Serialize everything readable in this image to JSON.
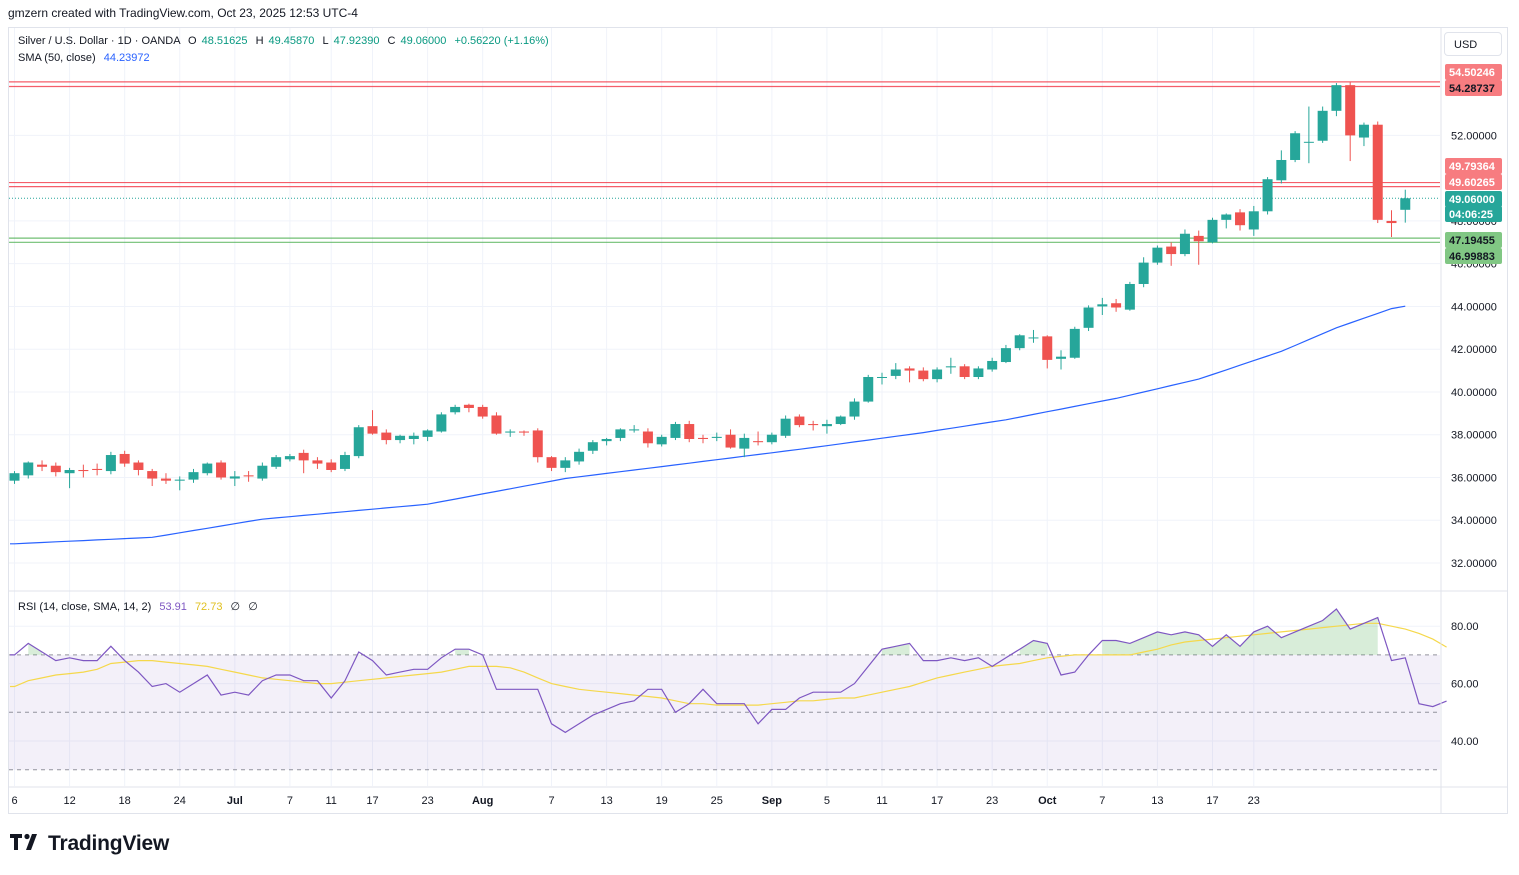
{
  "header": {
    "credit": "gmzern created with TradingView.com, Oct 23, 2025 12:53 UTC-4"
  },
  "legend": {
    "symbol": "Silver / U.S. Dollar · 1D · OANDA",
    "open_label": "O",
    "open": "48.51625",
    "high_label": "H",
    "high": "49.45870",
    "low_label": "L",
    "low": "47.92390",
    "close_label": "C",
    "close": "49.06000",
    "change": "+0.56220 (+1.16%)",
    "sma_label": "SMA (50, close)",
    "sma_value": "44.23972",
    "rsi_label": "RSI (14, close, SMA, 14, 2)",
    "rsi_value": "53.91",
    "rsi_sma_value": "72.73",
    "rsi_extra1": "∅",
    "rsi_extra2": "∅"
  },
  "currency_button": "USD",
  "brand": "TradingView",
  "colors": {
    "up": "#26a69a",
    "down": "#ef5350",
    "sma": "#2962ff",
    "rsi": "#7e57c2",
    "rsi_sma": "#f5d84b",
    "resistance": "#f23645",
    "support": "#4caf50"
  },
  "chart_data": [
    {
      "type": "candlestick",
      "title": "Silver / U.S. Dollar · 1D · OANDA",
      "x_tick_labels": [
        "6",
        "12",
        "18",
        "24",
        "Jul",
        "7",
        "11",
        "17",
        "23",
        "Aug",
        "7",
        "13",
        "19",
        "25",
        "Sep",
        "5",
        "11",
        "17",
        "23",
        "Oct",
        "7",
        "13",
        "17",
        "23"
      ],
      "y_tick_labels": [
        "32.00000",
        "34.00000",
        "36.00000",
        "38.00000",
        "40.00000",
        "42.00000",
        "44.00000",
        "46.00000",
        "48.00000",
        "52.00000"
      ],
      "ylim": [
        31,
        55.3
      ],
      "candles": [
        {
          "o": 35.85,
          "h": 36.3,
          "l": 35.7,
          "c": 36.2
        },
        {
          "o": 36.1,
          "h": 36.75,
          "l": 35.95,
          "c": 36.7
        },
        {
          "o": 36.6,
          "h": 36.8,
          "l": 36.3,
          "c": 36.5
        },
        {
          "o": 36.55,
          "h": 36.7,
          "l": 36.05,
          "c": 36.25
        },
        {
          "o": 36.2,
          "h": 36.45,
          "l": 35.5,
          "c": 36.35
        },
        {
          "o": 36.35,
          "h": 36.6,
          "l": 36.0,
          "c": 36.3
        },
        {
          "o": 36.4,
          "h": 36.65,
          "l": 36.1,
          "c": 36.35
        },
        {
          "o": 36.3,
          "h": 37.2,
          "l": 36.15,
          "c": 37.05
        },
        {
          "o": 37.1,
          "h": 37.25,
          "l": 36.5,
          "c": 36.65
        },
        {
          "o": 36.7,
          "h": 36.8,
          "l": 36.1,
          "c": 36.35
        },
        {
          "o": 36.3,
          "h": 36.4,
          "l": 35.6,
          "c": 35.95
        },
        {
          "o": 35.95,
          "h": 36.2,
          "l": 35.7,
          "c": 35.85
        },
        {
          "o": 35.85,
          "h": 36.05,
          "l": 35.4,
          "c": 35.9
        },
        {
          "o": 35.9,
          "h": 36.4,
          "l": 35.75,
          "c": 36.25
        },
        {
          "o": 36.2,
          "h": 36.7,
          "l": 36.1,
          "c": 36.65
        },
        {
          "o": 36.7,
          "h": 36.8,
          "l": 35.9,
          "c": 36.0
        },
        {
          "o": 35.95,
          "h": 36.3,
          "l": 35.6,
          "c": 36.05
        },
        {
          "o": 36.1,
          "h": 36.3,
          "l": 35.8,
          "c": 36.05
        },
        {
          "o": 35.95,
          "h": 36.7,
          "l": 35.85,
          "c": 36.55
        },
        {
          "o": 36.5,
          "h": 37.05,
          "l": 36.4,
          "c": 36.95
        },
        {
          "o": 36.85,
          "h": 37.1,
          "l": 36.75,
          "c": 37.0
        },
        {
          "o": 37.15,
          "h": 37.3,
          "l": 36.2,
          "c": 36.8
        },
        {
          "o": 36.8,
          "h": 36.95,
          "l": 36.4,
          "c": 36.65
        },
        {
          "o": 36.7,
          "h": 36.85,
          "l": 36.25,
          "c": 36.35
        },
        {
          "o": 36.4,
          "h": 37.2,
          "l": 36.3,
          "c": 37.05
        },
        {
          "o": 37.0,
          "h": 38.45,
          "l": 36.9,
          "c": 38.35
        },
        {
          "o": 38.4,
          "h": 39.15,
          "l": 38.0,
          "c": 38.05
        },
        {
          "o": 38.1,
          "h": 38.25,
          "l": 37.55,
          "c": 37.75
        },
        {
          "o": 37.75,
          "h": 38.0,
          "l": 37.6,
          "c": 37.95
        },
        {
          "o": 37.8,
          "h": 38.1,
          "l": 37.55,
          "c": 37.95
        },
        {
          "o": 37.9,
          "h": 38.25,
          "l": 37.7,
          "c": 38.2
        },
        {
          "o": 38.15,
          "h": 39.05,
          "l": 38.1,
          "c": 38.95
        },
        {
          "o": 39.05,
          "h": 39.4,
          "l": 38.95,
          "c": 39.3
        },
        {
          "o": 39.4,
          "h": 39.45,
          "l": 39.05,
          "c": 39.25
        },
        {
          "o": 39.3,
          "h": 39.4,
          "l": 38.75,
          "c": 38.85
        },
        {
          "o": 38.9,
          "h": 39.05,
          "l": 38.0,
          "c": 38.05
        },
        {
          "o": 38.1,
          "h": 38.25,
          "l": 37.9,
          "c": 38.15
        },
        {
          "o": 38.15,
          "h": 38.2,
          "l": 37.95,
          "c": 38.1
        },
        {
          "o": 38.2,
          "h": 38.3,
          "l": 36.7,
          "c": 36.95
        },
        {
          "o": 36.95,
          "h": 37.0,
          "l": 36.3,
          "c": 36.45
        },
        {
          "o": 36.45,
          "h": 36.95,
          "l": 36.25,
          "c": 36.8
        },
        {
          "o": 36.75,
          "h": 37.35,
          "l": 36.6,
          "c": 37.2
        },
        {
          "o": 37.25,
          "h": 37.75,
          "l": 37.1,
          "c": 37.65
        },
        {
          "o": 37.7,
          "h": 37.85,
          "l": 37.5,
          "c": 37.8
        },
        {
          "o": 37.85,
          "h": 38.3,
          "l": 37.7,
          "c": 38.25
        },
        {
          "o": 38.2,
          "h": 38.45,
          "l": 38.1,
          "c": 38.25
        },
        {
          "o": 38.15,
          "h": 38.3,
          "l": 37.4,
          "c": 37.6
        },
        {
          "o": 37.55,
          "h": 38.0,
          "l": 37.45,
          "c": 37.9
        },
        {
          "o": 37.85,
          "h": 38.6,
          "l": 37.75,
          "c": 38.5
        },
        {
          "o": 38.5,
          "h": 38.65,
          "l": 37.65,
          "c": 37.8
        },
        {
          "o": 37.85,
          "h": 38.0,
          "l": 37.6,
          "c": 37.8
        },
        {
          "o": 37.85,
          "h": 38.1,
          "l": 37.7,
          "c": 37.9
        },
        {
          "o": 38.0,
          "h": 38.25,
          "l": 37.35,
          "c": 37.4
        },
        {
          "o": 37.35,
          "h": 38.05,
          "l": 36.95,
          "c": 37.85
        },
        {
          "o": 37.7,
          "h": 38.15,
          "l": 37.5,
          "c": 37.65
        },
        {
          "o": 37.65,
          "h": 38.1,
          "l": 37.55,
          "c": 38.0
        },
        {
          "o": 37.95,
          "h": 38.9,
          "l": 37.85,
          "c": 38.75
        },
        {
          "o": 38.85,
          "h": 38.95,
          "l": 38.35,
          "c": 38.45
        },
        {
          "o": 38.5,
          "h": 38.65,
          "l": 38.2,
          "c": 38.45
        },
        {
          "o": 38.4,
          "h": 38.7,
          "l": 38.05,
          "c": 38.5
        },
        {
          "o": 38.5,
          "h": 38.9,
          "l": 38.45,
          "c": 38.85
        },
        {
          "o": 38.85,
          "h": 39.7,
          "l": 38.7,
          "c": 39.55
        },
        {
          "o": 39.55,
          "h": 40.8,
          "l": 39.5,
          "c": 40.7
        },
        {
          "o": 40.7,
          "h": 40.9,
          "l": 40.35,
          "c": 40.7
        },
        {
          "o": 40.75,
          "h": 41.35,
          "l": 40.6,
          "c": 41.05
        },
        {
          "o": 41.1,
          "h": 41.2,
          "l": 40.45,
          "c": 41.0
        },
        {
          "o": 41.0,
          "h": 41.15,
          "l": 40.5,
          "c": 40.6
        },
        {
          "o": 40.6,
          "h": 41.15,
          "l": 40.45,
          "c": 41.05
        },
        {
          "o": 41.15,
          "h": 41.6,
          "l": 40.85,
          "c": 41.2
        },
        {
          "o": 41.2,
          "h": 41.3,
          "l": 40.6,
          "c": 40.7
        },
        {
          "o": 40.7,
          "h": 41.2,
          "l": 40.6,
          "c": 41.1
        },
        {
          "o": 41.05,
          "h": 41.6,
          "l": 40.95,
          "c": 41.45
        },
        {
          "o": 41.4,
          "h": 42.2,
          "l": 41.35,
          "c": 42.05
        },
        {
          "o": 42.05,
          "h": 42.7,
          "l": 41.95,
          "c": 42.65
        },
        {
          "o": 42.55,
          "h": 42.9,
          "l": 42.3,
          "c": 42.55
        },
        {
          "o": 42.6,
          "h": 42.65,
          "l": 41.1,
          "c": 41.5
        },
        {
          "o": 41.55,
          "h": 41.95,
          "l": 41.05,
          "c": 41.65
        },
        {
          "o": 41.6,
          "h": 43.05,
          "l": 41.55,
          "c": 42.95
        },
        {
          "o": 43.0,
          "h": 44.05,
          "l": 42.85,
          "c": 43.95
        },
        {
          "o": 44.0,
          "h": 44.4,
          "l": 43.6,
          "c": 44.1
        },
        {
          "o": 44.15,
          "h": 44.35,
          "l": 43.75,
          "c": 43.95
        },
        {
          "o": 43.85,
          "h": 45.15,
          "l": 43.8,
          "c": 45.05
        },
        {
          "o": 45.05,
          "h": 46.3,
          "l": 44.9,
          "c": 46.05
        },
        {
          "o": 46.05,
          "h": 46.85,
          "l": 45.95,
          "c": 46.75
        },
        {
          "o": 46.8,
          "h": 47.0,
          "l": 45.9,
          "c": 46.45
        },
        {
          "o": 46.45,
          "h": 47.6,
          "l": 46.35,
          "c": 47.4
        },
        {
          "o": 47.3,
          "h": 47.55,
          "l": 45.95,
          "c": 47.05
        },
        {
          "o": 47.0,
          "h": 48.15,
          "l": 46.95,
          "c": 48.05
        },
        {
          "o": 48.05,
          "h": 48.35,
          "l": 47.65,
          "c": 48.3
        },
        {
          "o": 48.4,
          "h": 48.55,
          "l": 47.55,
          "c": 47.8
        },
        {
          "o": 47.6,
          "h": 48.7,
          "l": 47.3,
          "c": 48.45
        },
        {
          "o": 48.45,
          "h": 50.05,
          "l": 48.3,
          "c": 49.95
        },
        {
          "o": 49.9,
          "h": 51.3,
          "l": 49.75,
          "c": 50.85
        },
        {
          "o": 50.85,
          "h": 52.2,
          "l": 50.75,
          "c": 52.1
        },
        {
          "o": 51.7,
          "h": 53.35,
          "l": 50.7,
          "c": 51.7
        },
        {
          "o": 51.75,
          "h": 53.35,
          "l": 51.65,
          "c": 53.15
        },
        {
          "o": 53.15,
          "h": 54.45,
          "l": 52.9,
          "c": 54.35
        },
        {
          "o": 54.35,
          "h": 54.48,
          "l": 50.8,
          "c": 52.0
        },
        {
          "o": 51.9,
          "h": 52.6,
          "l": 51.5,
          "c": 52.5
        },
        {
          "o": 52.5,
          "h": 52.65,
          "l": 47.9,
          "c": 48.05
        },
        {
          "o": 48.0,
          "h": 48.5,
          "l": 47.25,
          "c": 47.9
        },
        {
          "o": 48.52,
          "h": 49.46,
          "l": 47.92,
          "c": 49.06
        }
      ],
      "horizontal_levels": [
        {
          "value": "54.50246",
          "role": "resistance"
        },
        {
          "value": "54.28737",
          "role": "resistance"
        },
        {
          "value": "49.79364",
          "role": "resistance"
        },
        {
          "value": "49.60265",
          "role": "resistance"
        },
        {
          "value": "47.19455",
          "role": "support"
        },
        {
          "value": "46.99883",
          "role": "support"
        }
      ],
      "last_price": "49.06000",
      "countdown": "04:06:25",
      "sma": {
        "name": "SMA (50, close)",
        "anchors": [
          [
            0,
            32.9
          ],
          [
            10,
            33.2
          ],
          [
            18,
            34.05
          ],
          [
            30,
            34.75
          ],
          [
            40,
            35.95
          ],
          [
            50,
            36.75
          ],
          [
            58,
            37.4
          ],
          [
            66,
            38.1
          ],
          [
            72,
            38.7
          ],
          [
            80,
            39.7
          ],
          [
            86,
            40.6
          ],
          [
            92,
            41.9
          ],
          [
            96,
            43.0
          ],
          [
            100,
            43.9
          ],
          [
            103,
            44.24
          ]
        ]
      }
    },
    {
      "type": "line",
      "title": "RSI (14, close, SMA, 14, 2)",
      "y_tick_labels": [
        "40.00",
        "60.00",
        "80.00"
      ],
      "ylim": [
        25,
        92
      ],
      "bands": [
        30,
        50,
        70
      ],
      "series": [
        {
          "name": "RSI",
          "values": [
            70,
            74,
            71,
            68,
            69,
            68,
            68,
            73,
            68,
            64,
            59,
            60,
            57,
            60,
            63,
            56,
            57,
            56,
            61,
            63,
            63,
            61,
            61,
            55,
            61,
            71,
            68,
            63,
            64,
            65,
            65,
            69,
            72,
            72,
            70,
            58,
            58,
            58,
            58,
            46,
            43,
            46,
            49,
            51,
            53,
            54,
            58,
            58,
            50,
            53,
            58,
            53,
            53,
            53,
            46,
            51,
            51,
            55,
            57,
            57,
            57,
            60,
            66,
            72,
            73,
            74,
            68,
            68,
            69,
            68,
            69,
            66,
            69,
            72,
            75,
            74,
            63,
            64,
            70,
            75,
            75,
            74,
            76,
            78,
            77,
            78,
            77,
            73,
            77,
            73,
            78,
            80,
            76,
            78,
            80,
            82,
            86,
            79,
            81,
            83,
            68,
            69,
            53,
            52,
            53.91
          ]
        },
        {
          "name": "RSI SMA",
          "values": [
            59,
            61,
            62,
            63,
            63.5,
            64,
            65,
            67,
            67.5,
            68,
            68,
            67.5,
            67,
            66.5,
            66,
            65,
            64,
            63,
            62,
            61.5,
            61,
            60.5,
            60,
            60,
            60.5,
            61,
            61.5,
            62,
            62.5,
            63,
            63.5,
            64,
            65,
            66,
            66,
            66,
            65.5,
            64,
            62,
            60,
            59,
            58,
            57.5,
            57,
            56.5,
            56,
            55.5,
            55,
            54,
            53,
            53,
            52.5,
            52.5,
            52.5,
            52.5,
            53,
            53.5,
            54,
            54,
            54.5,
            55,
            55,
            56,
            57,
            58,
            59,
            60.5,
            62,
            63,
            64,
            65,
            66,
            66.5,
            67,
            68,
            69,
            69.5,
            70,
            70,
            70,
            70,
            70,
            71,
            72,
            73.5,
            74.5,
            75,
            75.5,
            76,
            76.5,
            77,
            77.5,
            78,
            78.5,
            79,
            79.5,
            80,
            80.5,
            81,
            81,
            80,
            79,
            77.5,
            75.5,
            72.73
          ]
        }
      ]
    }
  ]
}
